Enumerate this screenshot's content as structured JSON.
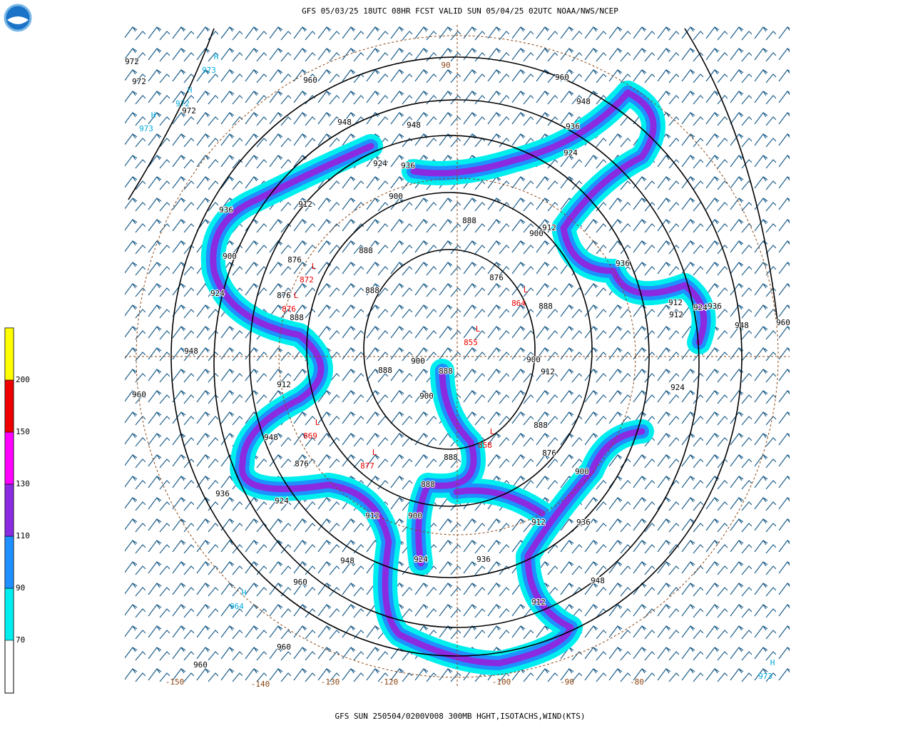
{
  "header": {
    "title": "GFS 05/03/25 18UTC 08HR FCST VALID SUN 05/04/25 02UTC NOAA/NWS/NCEP",
    "footer": "GFS SUN 250504/0200V008 300MB HGHT,ISOTACHS,WIND(KTS)"
  },
  "colorbar": [
    {
      "value": 70,
      "color": "#00eeee"
    },
    {
      "value": 90,
      "color": "#1e90ff"
    },
    {
      "value": 110,
      "color": "#8a2be2"
    },
    {
      "value": 130,
      "color": "#ff00ff"
    },
    {
      "value": 150,
      "color": "#ee0000"
    },
    {
      "value": 200,
      "color": "#ffff00"
    }
  ],
  "heights": [
    972,
    972,
    972,
    960,
    948,
    948,
    924,
    936,
    900,
    912,
    936,
    900,
    876,
    888,
    888,
    924,
    876,
    888,
    948,
    960,
    912,
    948,
    876,
    936,
    924,
    948,
    960,
    960,
    960,
    960,
    948,
    936,
    924,
    912,
    900,
    888,
    876,
    888,
    936,
    912,
    912,
    924,
    936,
    948,
    960,
    924,
    900,
    912,
    888,
    876,
    900,
    912,
    936,
    948,
    912,
    936,
    924,
    900,
    912,
    888,
    888,
    900,
    888,
    900,
    888
  ],
  "highs": [
    {
      "label": "H",
      "value": 973
    },
    {
      "label": "H",
      "value": 972
    },
    {
      "label": "H",
      "value": 973
    },
    {
      "label": "H",
      "value": 964
    },
    {
      "label": "H",
      "value": 973
    }
  ],
  "lows": [
    {
      "label": "L",
      "value": 872
    },
    {
      "label": "L",
      "value": 876
    },
    {
      "label": "L",
      "value": 864
    },
    {
      "label": "L",
      "value": 855
    },
    {
      "label": "L",
      "value": 869
    },
    {
      "label": "L",
      "value": 877
    },
    {
      "label": "L",
      "value": 858
    }
  ],
  "longitudes": [
    -150,
    -140,
    -130,
    -120,
    -100,
    -90,
    -80,
    90
  ]
}
